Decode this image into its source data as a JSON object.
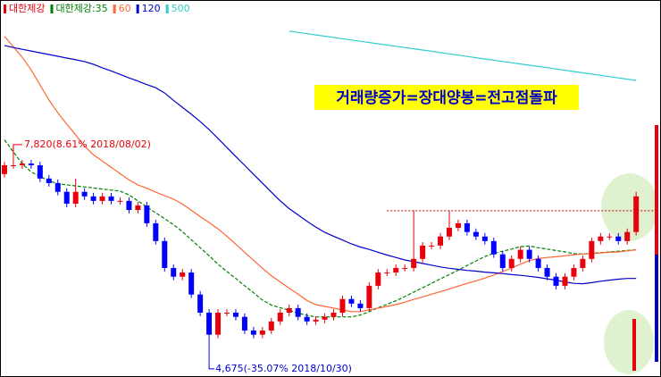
{
  "chart_data": {
    "type": "candlestick",
    "title": "거래량증가=장대양봉=전고점돌파",
    "ylim": [
      4520,
      9865
    ],
    "grid": false,
    "high_label": "7,820(8.61% 2018/08/02)",
    "low_label": "4,675(-35.07% 2018/10/30)",
    "resistance": 6875,
    "series": [
      {
        "name": "대한제강",
        "color": "#e8000b",
        "down_color": "#0000ff",
        "open": [
          7400,
          7525,
          7525,
          7550,
          7525,
          7335,
          7270,
          7145,
          6975,
          7145,
          7080,
          7015,
          7080,
          7015,
          7015,
          6885,
          6950,
          6695,
          6440,
          6055,
          5930,
          5990,
          5675,
          5415,
          5100,
          5415,
          5415,
          5355,
          5160,
          5100,
          5160,
          5290,
          5415,
          5480,
          5355,
          5290,
          5315,
          5355,
          5415,
          5610,
          5545,
          5480,
          5800,
          5990,
          5990,
          6055,
          6055,
          6185,
          6375,
          6375,
          6505,
          6630,
          6695,
          6570,
          6505,
          6440,
          6250,
          6055,
          6185,
          6315,
          6185,
          6055,
          5930,
          5800,
          5930,
          6055,
          6185,
          6440,
          6505,
          6505,
          6440,
          6570
        ],
        "high": [
          7575,
          7820,
          7600,
          7600,
          7575,
          7385,
          7320,
          7195,
          7335,
          7195,
          7130,
          7130,
          7130,
          7065,
          7065,
          7000,
          7000,
          6745,
          6490,
          6105,
          6040,
          6040,
          5725,
          5465,
          5465,
          5465,
          5465,
          5405,
          5210,
          5210,
          5340,
          5465,
          5530,
          5530,
          5405,
          5365,
          5405,
          5465,
          5660,
          5660,
          5595,
          5850,
          6040,
          6040,
          6105,
          6105,
          6880,
          6425,
          6425,
          6555,
          6880,
          6745,
          6745,
          6620,
          6555,
          6490,
          6300,
          6235,
          6365,
          6365,
          6235,
          6105,
          5980,
          5980,
          6105,
          6235,
          6490,
          6555,
          6555,
          6555,
          6620,
          7145
        ],
        "low": [
          7350,
          7475,
          7475,
          7475,
          7285,
          7220,
          7095,
          6925,
          6925,
          7030,
          6965,
          6965,
          6965,
          6965,
          6835,
          6835,
          6645,
          6390,
          6005,
          5880,
          5880,
          5625,
          5365,
          4675,
          5050,
          5365,
          5305,
          5110,
          5050,
          5050,
          5110,
          5240,
          5365,
          5305,
          5240,
          5240,
          5265,
          5305,
          5365,
          5495,
          5430,
          5430,
          5750,
          5940,
          5940,
          6005,
          6005,
          6135,
          6325,
          6325,
          6455,
          6580,
          6520,
          6455,
          6390,
          6200,
          6005,
          6005,
          6135,
          6135,
          6005,
          5880,
          5750,
          5750,
          5880,
          6005,
          6135,
          6390,
          6455,
          6390,
          6390,
          6520
        ],
        "close": [
          7525,
          7525,
          7550,
          7525,
          7335,
          7270,
          7145,
          6975,
          7145,
          7080,
          7015,
          7080,
          7015,
          7015,
          6885,
          6950,
          6695,
          6440,
          6055,
          5930,
          5990,
          5675,
          5415,
          5100,
          5415,
          5415,
          5355,
          5160,
          5100,
          5160,
          5290,
          5415,
          5480,
          5355,
          5290,
          5315,
          5355,
          5415,
          5610,
          5545,
          5480,
          5800,
          5990,
          5990,
          6055,
          6055,
          6185,
          6375,
          6375,
          6505,
          6630,
          6695,
          6570,
          6505,
          6440,
          6250,
          6055,
          6185,
          6315,
          6185,
          6055,
          5930,
          5800,
          5930,
          6055,
          6185,
          6440,
          6505,
          6505,
          6440,
          6570,
          7080
        ]
      },
      {
        "name": "대한제강:35",
        "color": "#008000",
        "dash": true,
        "values": [
          7890,
          7715,
          7545,
          7430,
          7365,
          7300,
          7260,
          7245,
          7230,
          7215,
          7200,
          7185,
          7170,
          7155,
          7100,
          7015,
          6930,
          6845,
          6760,
          6675,
          6575,
          6460,
          6345,
          6230,
          6110,
          6005,
          5905,
          5800,
          5700,
          5595,
          5525,
          5485,
          5450,
          5410,
          5375,
          5355,
          5355,
          5355,
          5355,
          5355,
          5380,
          5430,
          5485,
          5535,
          5585,
          5645,
          5710,
          5770,
          5835,
          5900,
          5960,
          6025,
          6090,
          6155,
          6220,
          6265,
          6295,
          6325,
          6360,
          6370,
          6345,
          6325,
          6305,
          6285,
          6260,
          6255,
          6265,
          6275,
          6285,
          6295,
          6305,
          6315
        ]
      },
      {
        "name": "60",
        "color": "#ff6633",
        "dash": false,
        "values": [
          9370,
          9220,
          9070,
          8890,
          8675,
          8460,
          8275,
          8115,
          7960,
          7800,
          7675,
          7585,
          7495,
          7405,
          7315,
          7245,
          7195,
          7140,
          7090,
          7040,
          6970,
          6880,
          6790,
          6705,
          6615,
          6510,
          6395,
          6280,
          6165,
          6050,
          5945,
          5855,
          5765,
          5680,
          5590,
          5530,
          5505,
          5480,
          5455,
          5430,
          5430,
          5455,
          5480,
          5505,
          5530,
          5565,
          5605,
          5640,
          5680,
          5715,
          5755,
          5795,
          5835,
          5870,
          5910,
          5955,
          6005,
          6055,
          6110,
          6160,
          6190,
          6205,
          6215,
          6230,
          6245,
          6255,
          6260,
          6270,
          6280,
          6285,
          6300,
          6315
        ]
      },
      {
        "name": "120",
        "color": "#0000cc",
        "dash": false,
        "values": [
          9240,
          9210,
          9185,
          9160,
          9135,
          9110,
          9085,
          9060,
          9035,
          9010,
          8970,
          8920,
          8875,
          8825,
          8775,
          8730,
          8680,
          8635,
          8560,
          8455,
          8355,
          8255,
          8150,
          8035,
          7910,
          7780,
          7650,
          7525,
          7395,
          7270,
          7140,
          7015,
          6905,
          6815,
          6725,
          6640,
          6565,
          6510,
          6455,
          6400,
          6355,
          6320,
          6280,
          6240,
          6205,
          6170,
          6145,
          6120,
          6095,
          6070,
          6050,
          6035,
          6020,
          6010,
          5995,
          5985,
          5975,
          5960,
          5950,
          5935,
          5920,
          5900,
          5880,
          5855,
          5835,
          5830,
          5845,
          5865,
          5880,
          5895,
          5905,
          5905
        ]
      },
      {
        "name": "500",
        "color": "#33cccc",
        "dash": false,
        "values": [
          null,
          null,
          null,
          null,
          null,
          null,
          null,
          null,
          null,
          null,
          null,
          null,
          null,
          null,
          null,
          null,
          null,
          null,
          null,
          null,
          null,
          null,
          null,
          null,
          null,
          null,
          null,
          null,
          null,
          null,
          null,
          null,
          9445,
          9427,
          9409,
          9391,
          9373,
          9355,
          9336,
          9318,
          9300,
          9282,
          9264,
          9246,
          9228,
          9210,
          9192,
          9174,
          9156,
          9138,
          9120,
          9101,
          9083,
          9065,
          9047,
          9029,
          9011,
          8993,
          8975,
          8957,
          8939,
          8921,
          8903,
          8885,
          8866,
          8848,
          8830,
          8812,
          8794,
          8776,
          8758,
          8740
        ]
      }
    ]
  }
}
